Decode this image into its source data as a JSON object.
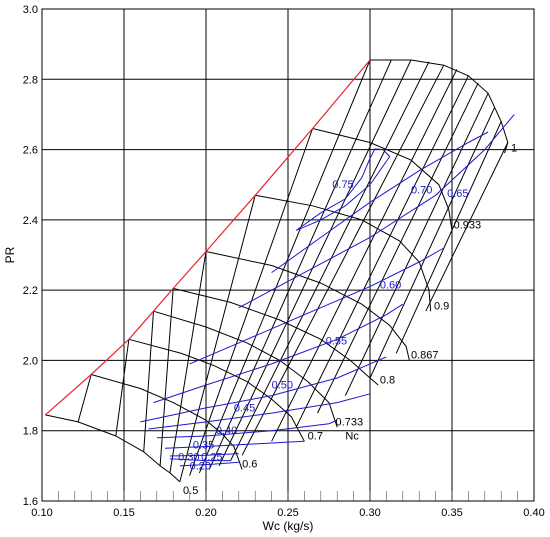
{
  "chart_data": {
    "type": "line",
    "title": "",
    "xlabel": "Wc (kg/s)",
    "ylabel": "PR",
    "xlim": [
      0.1,
      0.4
    ],
    "ylim": [
      1.6,
      3.0
    ],
    "grid": true,
    "x_ticks": [
      0.1,
      0.15,
      0.2,
      0.25,
      0.3,
      0.35,
      0.4
    ],
    "x_tick_labels": [
      "0.10",
      "0.15",
      "0.20",
      "0.25",
      "0.30",
      "0.35",
      "0.40"
    ],
    "y_ticks": [
      1.6,
      1.8,
      2.0,
      2.2,
      2.4,
      2.6,
      2.8,
      3.0
    ],
    "y_tick_labels": [
      "1.6",
      "1.8",
      "2.0",
      "2.2",
      "2.4",
      "2.6",
      "2.8",
      "3.0"
    ],
    "surge_line": {
      "name": "surge line",
      "color": "#e8262b",
      "points": [
        [
          0.102,
          1.845
        ],
        [
          0.13,
          1.96
        ],
        [
          0.153,
          2.06
        ],
        [
          0.168,
          2.14
        ],
        [
          0.18,
          2.205
        ],
        [
          0.2,
          2.31
        ],
        [
          0.23,
          2.47
        ],
        [
          0.265,
          2.66
        ],
        [
          0.3,
          2.855
        ]
      ]
    },
    "speed_lines": {
      "color": "#000000",
      "series": [
        {
          "label": "0.5",
          "points": [
            [
              0.102,
              1.845
            ],
            [
              0.122,
              1.825
            ],
            [
              0.145,
              1.785
            ],
            [
              0.162,
              1.74
            ],
            [
              0.172,
              1.7
            ],
            [
              0.178,
              1.68
            ],
            [
              0.184,
              1.655
            ]
          ]
        },
        {
          "label": "0.6",
          "points": [
            [
              0.13,
              1.96
            ],
            [
              0.16,
              1.92
            ],
            [
              0.18,
              1.88
            ],
            [
              0.2,
              1.83
            ],
            [
              0.21,
              1.79
            ],
            [
              0.217,
              1.755
            ],
            [
              0.222,
              1.69
            ]
          ]
        },
        {
          "label": "0.7",
          "points": [
            [
              0.153,
              2.06
            ],
            [
              0.185,
              2.02
            ],
            [
              0.205,
              1.985
            ],
            [
              0.225,
              1.94
            ],
            [
              0.24,
              1.89
            ],
            [
              0.252,
              1.84
            ],
            [
              0.26,
              1.77
            ]
          ]
        },
        {
          "label": "0.733",
          "points": [
            [
              0.168,
              2.14
            ],
            [
              0.2,
              2.095
            ],
            [
              0.225,
              2.05
            ],
            [
              0.245,
              2.0
            ],
            [
              0.262,
              1.94
            ],
            [
              0.275,
              1.88
            ],
            [
              0.28,
              1.81
            ]
          ]
        },
        {
          "label": "0.8",
          "points": [
            [
              0.18,
              2.205
            ],
            [
              0.215,
              2.165
            ],
            [
              0.245,
              2.115
            ],
            [
              0.27,
              2.06
            ],
            [
              0.288,
              2.0
            ],
            [
              0.3,
              1.95
            ],
            [
              0.305,
              1.93
            ]
          ]
        },
        {
          "label": "0.867",
          "points": [
            [
              0.2,
              2.31
            ],
            [
              0.24,
              2.27
            ],
            [
              0.27,
              2.22
            ],
            [
              0.295,
              2.16
            ],
            [
              0.312,
              2.1
            ],
            [
              0.322,
              2.04
            ],
            [
              0.324,
              2.0
            ]
          ]
        },
        {
          "label": "0.9",
          "points": [
            [
              0.23,
              2.47
            ],
            [
              0.265,
              2.44
            ],
            [
              0.295,
              2.4
            ],
            [
              0.318,
              2.34
            ],
            [
              0.33,
              2.28
            ],
            [
              0.336,
              2.2
            ],
            [
              0.337,
              2.14
            ]
          ]
        },
        {
          "label": "0.933",
          "points": [
            [
              0.265,
              2.66
            ],
            [
              0.3,
              2.62
            ],
            [
              0.325,
              2.57
            ],
            [
              0.342,
              2.5
            ],
            [
              0.348,
              2.43
            ],
            [
              0.35,
              2.37
            ]
          ]
        },
        {
          "label": "1",
          "points": [
            [
              0.3,
              2.855
            ],
            [
              0.325,
              2.855
            ],
            [
              0.345,
              2.84
            ],
            [
              0.36,
              2.81
            ],
            [
              0.372,
              2.76
            ],
            [
              0.38,
              2.68
            ],
            [
              0.384,
              2.62
            ],
            [
              0.382,
              2.59
            ]
          ]
        }
      ]
    },
    "constant_lines": {
      "color": "#000000",
      "lines": [
        [
          [
            0.122,
            1.825
          ],
          [
            0.13,
            1.96
          ]
        ],
        [
          [
            0.145,
            1.785
          ],
          [
            0.153,
            2.06
          ]
        ],
        [
          [
            0.162,
            1.74
          ],
          [
            0.168,
            2.14
          ]
        ],
        [
          [
            0.172,
            1.7
          ],
          [
            0.18,
            2.205
          ]
        ],
        [
          [
            0.178,
            1.68
          ],
          [
            0.2,
            2.31
          ]
        ],
        [
          [
            0.184,
            1.655
          ],
          [
            0.23,
            2.47
          ]
        ],
        [
          [
            0.19,
            1.672
          ],
          [
            0.265,
            2.66
          ]
        ],
        [
          [
            0.196,
            1.68
          ],
          [
            0.3,
            2.855
          ]
        ],
        [
          [
            0.202,
            1.69
          ],
          [
            0.313,
            2.855
          ]
        ],
        [
          [
            0.208,
            1.7
          ],
          [
            0.325,
            2.855
          ]
        ],
        [
          [
            0.215,
            1.715
          ],
          [
            0.336,
            2.85
          ]
        ],
        [
          [
            0.222,
            1.73
          ],
          [
            0.345,
            2.84
          ]
        ],
        [
          [
            0.24,
            1.77
          ],
          [
            0.353,
            2.828
          ]
        ],
        [
          [
            0.255,
            1.81
          ],
          [
            0.36,
            2.81
          ]
        ],
        [
          [
            0.268,
            1.85
          ],
          [
            0.366,
            2.79
          ]
        ],
        [
          [
            0.285,
            1.9
          ],
          [
            0.372,
            2.76
          ]
        ],
        [
          [
            0.3,
            1.95
          ],
          [
            0.376,
            2.72
          ]
        ],
        [
          [
            0.316,
            2.02
          ],
          [
            0.38,
            2.68
          ]
        ],
        [
          [
            0.334,
            2.14
          ],
          [
            0.384,
            2.62
          ]
        ]
      ]
    },
    "efficiency_contours": {
      "color": "#1a1acc",
      "series": [
        {
          "label": "0.30",
          "points": [
            [
              0.178,
              1.72
            ],
            [
              0.2,
              1.715
            ],
            [
              0.215,
              1.715
            ]
          ]
        },
        {
          "label": "0.25",
          "points": [
            [
              0.178,
              1.728
            ],
            [
              0.2,
              1.73
            ],
            [
              0.22,
              1.735
            ]
          ]
        },
        {
          "label": "0.20",
          "points": [
            [
              0.184,
              1.7
            ],
            [
              0.205,
              1.705
            ],
            [
              0.22,
              1.71
            ]
          ]
        },
        {
          "label": "0.35",
          "points": [
            [
              0.175,
              1.75
            ],
            [
              0.2,
              1.755
            ],
            [
              0.24,
              1.765
            ],
            [
              0.26,
              1.77
            ]
          ]
        },
        {
          "label": "0.40",
          "points": [
            [
              0.17,
              1.78
            ],
            [
              0.2,
              1.785
            ],
            [
              0.24,
              1.8
            ],
            [
              0.275,
              1.82
            ],
            [
              0.28,
              1.83
            ]
          ]
        },
        {
          "label": "0.45",
          "points": [
            [
              0.165,
              1.805
            ],
            [
              0.2,
              1.825
            ],
            [
              0.24,
              1.85
            ],
            [
              0.28,
              1.88
            ],
            [
              0.3,
              1.905
            ]
          ]
        },
        {
          "label": "0.50",
          "points": [
            [
              0.16,
              1.825
            ],
            [
              0.2,
              1.865
            ],
            [
              0.24,
              1.9
            ],
            [
              0.28,
              1.95
            ],
            [
              0.3,
              1.99
            ],
            [
              0.31,
              2.01
            ]
          ]
        },
        {
          "label": "0.55",
          "points": [
            [
              0.168,
              1.88
            ],
            [
              0.2,
              1.93
            ],
            [
              0.24,
              1.99
            ],
            [
              0.28,
              2.06
            ],
            [
              0.31,
              2.13
            ],
            [
              0.32,
              2.16
            ]
          ]
        },
        {
          "label": "0.60",
          "points": [
            [
              0.19,
              1.99
            ],
            [
              0.22,
              2.05
            ],
            [
              0.26,
              2.13
            ],
            [
              0.3,
              2.21
            ],
            [
              0.33,
              2.28
            ],
            [
              0.345,
              2.32
            ]
          ]
        },
        {
          "label": "0.65",
          "points": [
            [
              0.22,
              2.15
            ],
            [
              0.26,
              2.25
            ],
            [
              0.3,
              2.35
            ],
            [
              0.34,
              2.47
            ],
            [
              0.37,
              2.6
            ],
            [
              0.388,
              2.7
            ]
          ]
        },
        {
          "label": "0.70",
          "points": [
            [
              0.24,
              2.25
            ],
            [
              0.27,
              2.35
            ],
            [
              0.3,
              2.45
            ],
            [
              0.33,
              2.54
            ],
            [
              0.36,
              2.62
            ],
            [
              0.372,
              2.65
            ]
          ]
        },
        {
          "label": "0.75",
          "points": [
            [
              0.255,
              2.37
            ],
            [
              0.27,
              2.42
            ],
            [
              0.285,
              2.46
            ],
            [
              0.295,
              2.52
            ],
            [
              0.3,
              2.575
            ],
            [
              0.303,
              2.602
            ],
            [
              0.308,
              2.6
            ],
            [
              0.312,
              2.58
            ],
            [
              0.3,
              2.5
            ],
            [
              0.285,
              2.44
            ],
            [
              0.27,
              2.4
            ],
            [
              0.255,
              2.37
            ]
          ]
        }
      ]
    },
    "speed_labels": [
      {
        "text": "0.5",
        "x": 0.186,
        "y": 1.62
      },
      {
        "text": "0.6",
        "x": 0.222,
        "y": 1.695
      },
      {
        "text": "0.7",
        "x": 0.262,
        "y": 1.775
      },
      {
        "text": "Nc",
        "x": 0.285,
        "y": 1.775
      },
      {
        "text": "0.733",
        "x": 0.279,
        "y": 1.815
      },
      {
        "text": "0.8",
        "x": 0.306,
        "y": 1.935
      },
      {
        "text": "0.867",
        "x": 0.325,
        "y": 2.005
      },
      {
        "text": "0.9",
        "x": 0.339,
        "y": 2.145
      },
      {
        "text": "0.933",
        "x": 0.351,
        "y": 2.375
      },
      {
        "text": "1",
        "x": 0.386,
        "y": 2.595
      }
    ],
    "efficiency_labels": [
      {
        "text": "0.30",
        "x": 0.183,
        "y": 1.715
      },
      {
        "text": "0.25",
        "x": 0.197,
        "y": 1.715
      },
      {
        "text": "0.20",
        "x": 0.19,
        "y": 1.69
      },
      {
        "text": "0.35",
        "x": 0.192,
        "y": 1.75
      },
      {
        "text": "0.40",
        "x": 0.206,
        "y": 1.79
      },
      {
        "text": "0.45",
        "x": 0.217,
        "y": 1.855
      },
      {
        "text": "0.50",
        "x": 0.24,
        "y": 1.92
      },
      {
        "text": "0.55",
        "x": 0.273,
        "y": 2.045
      },
      {
        "text": "0.60",
        "x": 0.306,
        "y": 2.205
      },
      {
        "text": "0.65",
        "x": 0.347,
        "y": 2.465
      },
      {
        "text": "0.70",
        "x": 0.325,
        "y": 2.475
      },
      {
        "text": "0.75",
        "x": 0.277,
        "y": 2.49
      }
    ]
  }
}
